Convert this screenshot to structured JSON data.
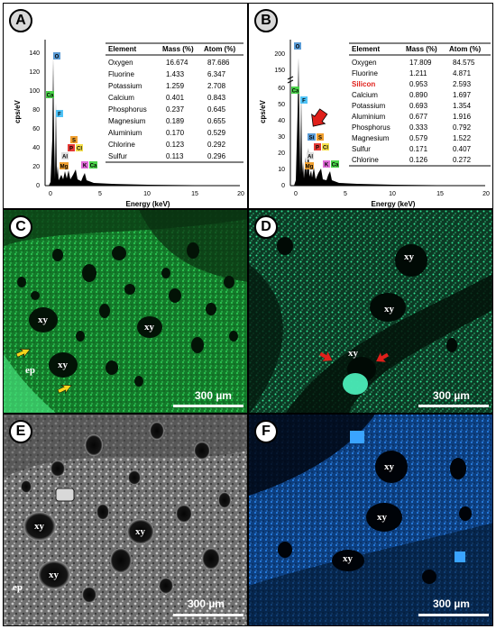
{
  "panels": {
    "A": {
      "letter": "A",
      "ylabel": "cps/eV",
      "xlabel": "Energy (keV)",
      "yticks": [
        "0",
        "20",
        "40",
        "60",
        "80",
        "100",
        "120",
        "140"
      ],
      "xticks": [
        "0",
        "5",
        "10",
        "15",
        "20"
      ],
      "peaks": [
        "O",
        "Ca",
        "F",
        "S",
        "P",
        "Cl",
        "Al",
        "Mg",
        "K",
        "Ca"
      ],
      "table": {
        "headers": [
          "Element",
          "Mass (%)",
          "Atom (%)"
        ],
        "rows": [
          [
            "Oxygen",
            "16.674",
            "87.686"
          ],
          [
            "Fluorine",
            "1.433",
            "6.347"
          ],
          [
            "Potassium",
            "1.259",
            "2.708"
          ],
          [
            "Calcium",
            "0.401",
            "0.843"
          ],
          [
            "Phosphorus",
            "0.237",
            "0.645"
          ],
          [
            "Magnesium",
            "0.189",
            "0.655"
          ],
          [
            "Aluminium",
            "0.170",
            "0.529"
          ],
          [
            "Chlorine",
            "0.123",
            "0.292"
          ],
          [
            "Sulfur",
            "0.113",
            "0.296"
          ]
        ]
      }
    },
    "B": {
      "letter": "B",
      "ylabel": "cps/eV",
      "xlabel": "Energy (keV)",
      "yticks": [
        "0",
        "10",
        "20",
        "30",
        "40",
        "50",
        "60",
        "150",
        "200"
      ],
      "xticks": [
        "0",
        "5",
        "10",
        "15",
        "20"
      ],
      "peaks": [
        "O",
        "Ca",
        "F",
        "Si",
        "S",
        "P",
        "Cl",
        "Al",
        "Mg",
        "K",
        "Ca"
      ],
      "table": {
        "headers": [
          "Element",
          "Mass (%)",
          "Atom (%)"
        ],
        "rows": [
          [
            "Oxygen",
            "17.809",
            "84.575"
          ],
          [
            "Fluorine",
            "1.211",
            "4.871"
          ],
          [
            "Silicon",
            "0.953",
            "2.593"
          ],
          [
            "Calcium",
            "0.890",
            "1.697"
          ],
          [
            "Potassium",
            "0.693",
            "1.354"
          ],
          [
            "Aluminium",
            "0.677",
            "1.916"
          ],
          [
            "Phosphorus",
            "0.333",
            "0.792"
          ],
          [
            "Magnesium",
            "0.579",
            "1.522"
          ],
          [
            "Sulfur",
            "0.171",
            "0.407"
          ],
          [
            "Chlorine",
            "0.126",
            "0.272"
          ]
        ],
        "highlight_color": "#e0201b"
      }
    },
    "C": {
      "letter": "C",
      "scale": "300 µm",
      "labels": [
        "xy",
        "xy",
        "xy"
      ],
      "ep": "ep",
      "color": "#1fae3b"
    },
    "D": {
      "letter": "D",
      "scale": "300 µm",
      "labels": [
        "xy",
        "xy",
        "xy"
      ],
      "color": "#27d98b"
    },
    "E": {
      "letter": "E",
      "scale": "300 µm",
      "labels": [
        "xy",
        "xy",
        "xy"
      ],
      "ep": "ep",
      "color": "#9a9a9a"
    },
    "F": {
      "letter": "F",
      "scale": "300 µm",
      "labels": [
        "xy",
        "xy",
        "xy"
      ],
      "color": "#1a6fd6"
    }
  }
}
